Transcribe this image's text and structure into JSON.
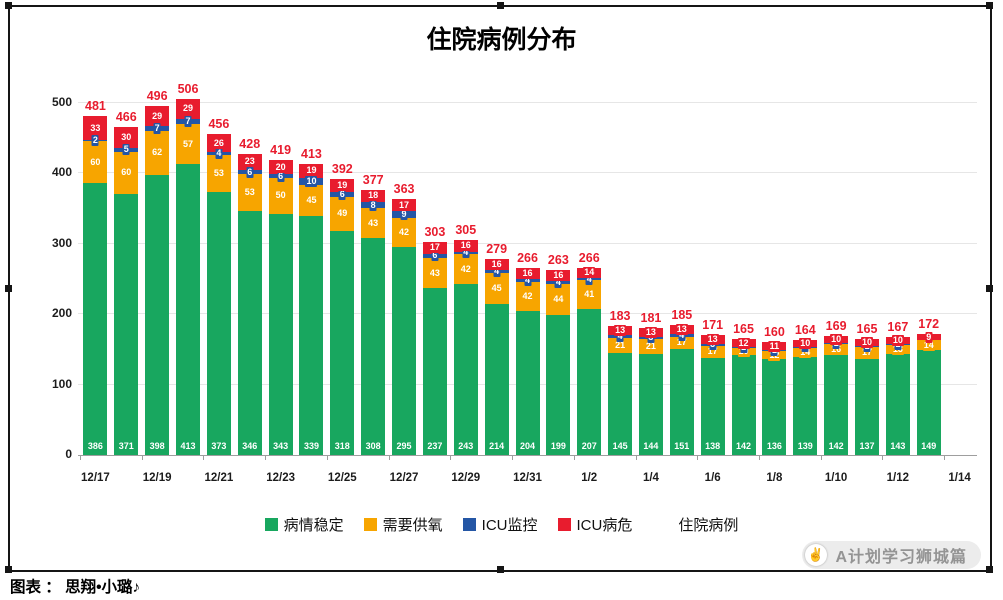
{
  "title": "住院病例分布",
  "caption": "图表 ： 思翔•小璐♪",
  "watermark": {
    "icon": "✌",
    "text": "A计划学习狮城篇"
  },
  "legend": {
    "items": [
      {
        "key": "stable",
        "label": "病情稳定",
        "color": "#18a75f",
        "swatch": true
      },
      {
        "key": "oxygen",
        "label": "需要供氧",
        "color": "#f7a500",
        "swatch": true
      },
      {
        "key": "icu-monitor",
        "label": "ICU监控",
        "color": "#2456a5",
        "swatch": true
      },
      {
        "key": "icu-critical",
        "label": "ICU病危",
        "color": "#e81c2e",
        "swatch": true
      },
      {
        "key": "hospitalized-total",
        "label": "住院病例",
        "color": null,
        "swatch": false
      }
    ]
  },
  "chart_data": {
    "type": "stacked-bar",
    "title": "住院病例分布",
    "xlabel": "",
    "ylabel": "",
    "grid": true,
    "ylim": [
      0,
      500
    ],
    "y_ticks": [
      0,
      100,
      200,
      300,
      400,
      500
    ],
    "categories": [
      "12/17",
      "12/18",
      "12/19",
      "12/20",
      "12/21",
      "12/22",
      "12/23",
      "12/24",
      "12/25",
      "12/26",
      "12/27",
      "12/28",
      "12/29",
      "12/30",
      "12/31",
      "1/1",
      "1/2",
      "1/3",
      "1/4",
      "1/5",
      "1/6",
      "1/7",
      "1/8",
      "1/9",
      "1/10",
      "1/11",
      "1/12",
      "1/13"
    ],
    "x_axis_tick_labels": [
      "12/17",
      "12/19",
      "12/21",
      "12/23",
      "12/25",
      "12/27",
      "12/29",
      "12/31",
      "1/2",
      "1/4",
      "1/6",
      "1/8",
      "1/10",
      "1/12",
      "1/14"
    ],
    "series": [
      {
        "key": "stable",
        "name": "病情稳定",
        "color": "#18a75f",
        "values": [
          386,
          371,
          398,
          413,
          373,
          346,
          343,
          339,
          318,
          308,
          295,
          237,
          243,
          214,
          204,
          199,
          207,
          145,
          144,
          151,
          138,
          142,
          136,
          139,
          142,
          137,
          143,
          149
        ]
      },
      {
        "key": "oxygen",
        "name": "需要供氧",
        "color": "#f7a500",
        "values": [
          60,
          60,
          62,
          57,
          53,
          53,
          50,
          45,
          49,
          43,
          42,
          43,
          42,
          45,
          42,
          44,
          41,
          21,
          21,
          17,
          17,
          10,
          12,
          14,
          16,
          17,
          13,
          14
        ]
      },
      {
        "key": "icu-monitor",
        "name": "ICU监控",
        "color": "#2456a5",
        "values": [
          2,
          5,
          7,
          7,
          4,
          6,
          6,
          10,
          6,
          8,
          9,
          6,
          4,
          4,
          4,
          4,
          4,
          4,
          3,
          4,
          3,
          1,
          1,
          1,
          1,
          1,
          1,
          0
        ]
      },
      {
        "key": "icu-critical",
        "name": "ICU病危",
        "color": "#e81c2e",
        "values": [
          33,
          30,
          29,
          29,
          26,
          23,
          20,
          19,
          19,
          18,
          17,
          17,
          16,
          16,
          16,
          16,
          14,
          13,
          13,
          13,
          13,
          12,
          11,
          10,
          10,
          10,
          10,
          9
        ]
      }
    ],
    "totals": [
      481,
      466,
      496,
      506,
      456,
      428,
      419,
      413,
      392,
      377,
      363,
      303,
      305,
      279,
      266,
      263,
      266,
      183,
      181,
      185,
      171,
      165,
      160,
      164,
      169,
      165,
      167,
      172
    ],
    "total_series_name": "住院病例",
    "total_label_color": "#e81c2e"
  }
}
